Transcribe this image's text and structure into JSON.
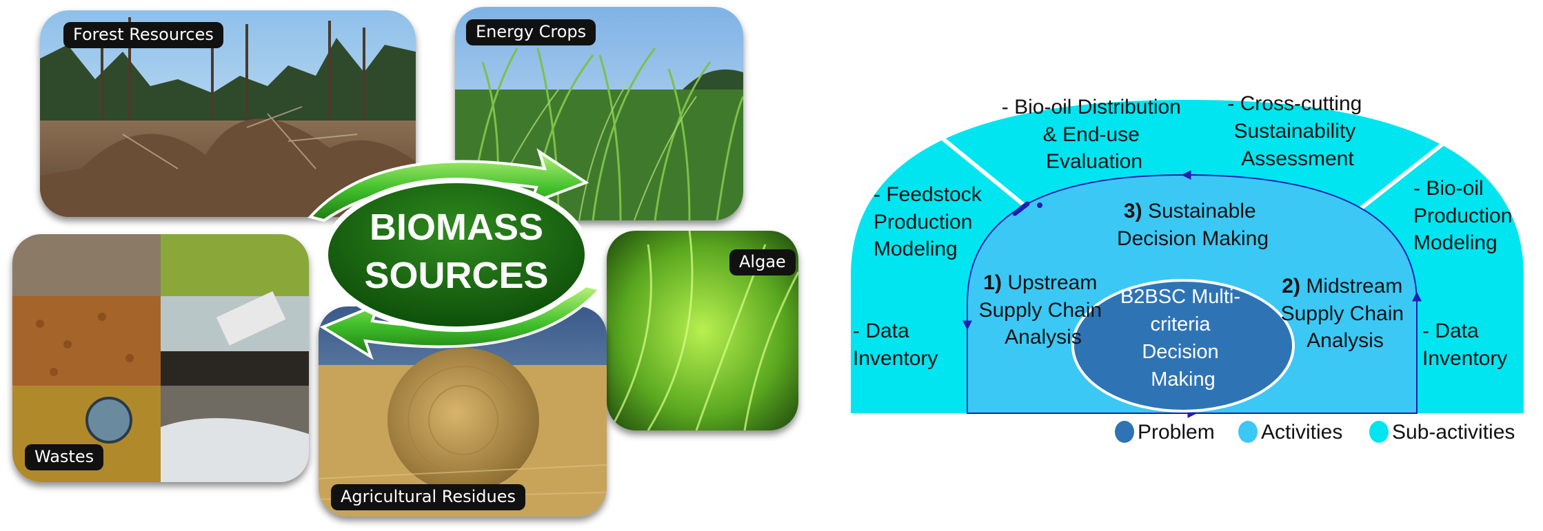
{
  "collage": {
    "center_title_line1": "BIOMASS",
    "center_title_line2": "SOURCES",
    "labels": {
      "forest": "Forest Resources",
      "energy": "Energy Crops",
      "algae": "Algae",
      "wastes": "Wastes",
      "agri": "Agricultural Residues"
    }
  },
  "framework": {
    "colors": {
      "sub_activities": "#00E5F0",
      "activities": "#3CC8F5",
      "problem": "#2E74B5",
      "arrows": "#1F1FB4"
    },
    "outer": {
      "bio_oil_distribution": [
        "- Bio-oil Distribution",
        "& End-use",
        "Evaluation"
      ],
      "cross_cutting": [
        "- Cross-cutting",
        "Sustainability",
        "Assessment"
      ],
      "feedstock": [
        "- Feedstock",
        "Production",
        "Modeling"
      ],
      "bio_oil_production": [
        "- Bio-oil",
        "Production",
        "Modeling"
      ],
      "data_left": [
        "- Data",
        "Inventory"
      ],
      "data_right": [
        "- Data",
        "Inventory"
      ]
    },
    "activities": {
      "sustainable": {
        "num": "3)",
        "line1": "Sustainable",
        "line2": "Decision Making"
      },
      "upstream": {
        "num": "1)",
        "line1": "Upstream",
        "line2": "Supply Chain",
        "line3": "Analysis"
      },
      "midstream": {
        "num": "2)",
        "line1": "Midstream",
        "line2": "Supply Chain",
        "line3": "Analysis"
      }
    },
    "problem": [
      "B2BSC Multi-",
      "criteria",
      "Decision",
      "Making"
    ],
    "legend": {
      "problem": "Problem",
      "activities": "Activities",
      "sub_activities": "Sub-activities"
    }
  }
}
